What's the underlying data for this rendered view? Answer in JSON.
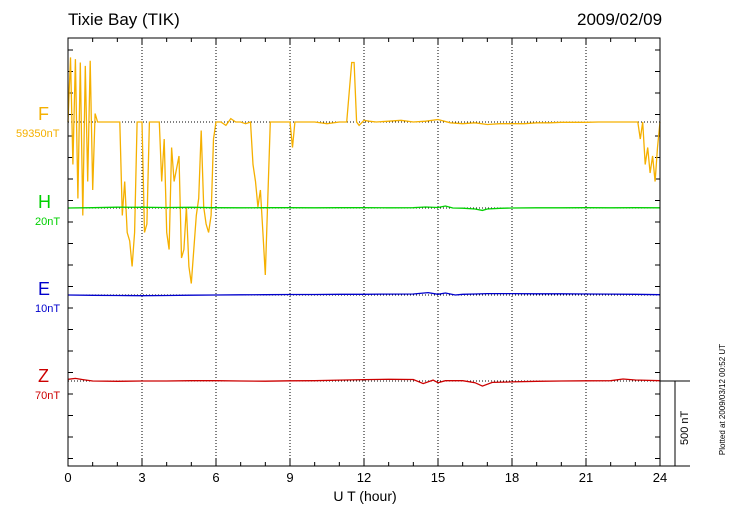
{
  "header": {
    "station": "Tixie Bay (TIK)",
    "date": "2009/02/09"
  },
  "channels": [
    {
      "name": "F",
      "scale": "59350nT",
      "color": "#f5b000"
    },
    {
      "name": "H",
      "scale": "20nT",
      "color": "#00d000"
    },
    {
      "name": "E",
      "scale": "10nT",
      "color": "#0000cc"
    },
    {
      "name": "Z",
      "scale": "70nT",
      "color": "#cc0000"
    }
  ],
  "side": {
    "scale_bar_label": "500 nT",
    "plotted": "Plotted at 2009/03/12 00:52 UT"
  },
  "chart_data": {
    "type": "line",
    "xlabel": "U T (hour)",
    "xlim": [
      0,
      24
    ],
    "xticks": [
      0,
      3,
      6,
      9,
      12,
      15,
      18,
      21,
      24
    ],
    "ylabel": "",
    "scale_bar_nT": 500,
    "grid": true,
    "series": [
      {
        "name": "F",
        "baseline": 59350,
        "unit": "nT",
        "x": [
          0.0,
          0.1,
          0.2,
          0.3,
          0.4,
          0.5,
          0.6,
          0.7,
          0.8,
          0.9,
          1.0,
          1.1,
          1.2,
          1.7,
          2.1,
          2.2,
          2.3,
          2.4,
          2.5,
          2.6,
          2.7,
          2.8,
          2.9,
          3.0,
          3.1,
          3.2,
          3.3,
          3.5,
          3.7,
          3.8,
          3.9,
          4.0,
          4.1,
          4.2,
          4.3,
          4.5,
          4.6,
          4.7,
          4.8,
          4.9,
          5.0,
          5.1,
          5.2,
          5.3,
          5.4,
          5.5,
          5.6,
          5.7,
          5.8,
          5.9,
          6.0,
          6.2,
          6.4,
          6.6,
          6.8,
          7.0,
          7.2,
          7.4,
          7.5,
          7.6,
          7.7,
          7.8,
          7.9,
          8.0,
          8.1,
          8.2,
          8.4,
          8.6,
          8.8,
          9.0,
          9.1,
          9.2,
          9.5,
          10.0,
          10.5,
          11.0,
          11.3,
          11.5,
          11.6,
          11.7,
          11.8,
          12.0,
          12.2,
          12.5,
          13.0,
          13.5,
          14.0,
          14.5,
          15.0,
          15.5,
          16.0,
          16.5,
          17.0,
          17.5,
          18.0,
          18.5,
          19.0,
          19.5,
          20.0,
          20.5,
          21.0,
          21.5,
          22.0,
          22.5,
          22.8,
          23.0,
          23.1,
          23.2,
          23.3,
          23.4,
          23.5,
          23.6,
          23.7,
          23.8,
          23.9,
          24.0
        ],
        "y": [
          59350,
          59730,
          59100,
          59720,
          58900,
          59700,
          58800,
          59680,
          59000,
          59710,
          58950,
          59400,
          59350,
          59350,
          59350,
          58800,
          59000,
          58700,
          58650,
          58500,
          58700,
          59350,
          59350,
          59350,
          58700,
          58750,
          59350,
          59350,
          59350,
          59000,
          59250,
          58700,
          58600,
          59200,
          59000,
          59150,
          58550,
          58600,
          58850,
          58500,
          58400,
          58600,
          58800,
          58900,
          59300,
          58850,
          58750,
          58700,
          58800,
          59250,
          59350,
          59350,
          59330,
          59370,
          59350,
          59350,
          59340,
          59350,
          59100,
          59000,
          58850,
          58950,
          58700,
          58450,
          58900,
          59350,
          59350,
          59350,
          59350,
          59350,
          59200,
          59350,
          59350,
          59350,
          59340,
          59350,
          59350,
          59700,
          59700,
          59350,
          59330,
          59360,
          59355,
          59350,
          59355,
          59360,
          59350,
          59355,
          59365,
          59345,
          59340,
          59345,
          59335,
          59340,
          59340,
          59340,
          59345,
          59345,
          59348,
          59348,
          59348,
          59350,
          59350,
          59350,
          59350,
          59350,
          59350,
          59250,
          59350,
          59100,
          59200,
          59050,
          59150,
          59000,
          59200,
          59350
        ]
      },
      {
        "name": "H",
        "baseline": 20,
        "unit": "nT",
        "x": [
          0.0,
          1.0,
          2.0,
          3.0,
          4.0,
          5.0,
          6.0,
          7.0,
          8.0,
          9.0,
          10.0,
          11.0,
          12.0,
          13.0,
          14.0,
          14.5,
          15.0,
          15.3,
          15.6,
          16.0,
          16.5,
          16.8,
          17.0,
          17.5,
          18.0,
          19.0,
          20.0,
          21.0,
          22.0,
          23.0,
          24.0
        ],
        "y": [
          20,
          22,
          25,
          24,
          23,
          24,
          22,
          21,
          22,
          22,
          21,
          22,
          22,
          21,
          22,
          26,
          23,
          32,
          20,
          19,
          14,
          6,
          14,
          18,
          20,
          21,
          21,
          22,
          21,
          22,
          21
        ]
      },
      {
        "name": "E",
        "baseline": 10,
        "unit": "nT",
        "x": [
          0.0,
          1.0,
          2.0,
          3.0,
          4.0,
          5.0,
          6.0,
          7.0,
          8.0,
          9.0,
          10.0,
          11.0,
          12.0,
          13.0,
          14.0,
          14.6,
          15.0,
          15.3,
          15.7,
          16.0,
          16.5,
          17.0,
          18.0,
          19.0,
          20.0,
          21.0,
          22.0,
          23.0,
          24.0
        ],
        "y": [
          10,
          8,
          7,
          6,
          7,
          9,
          10,
          11,
          12,
          13,
          13,
          14,
          14,
          15,
          16,
          24,
          14,
          22,
          10,
          14,
          16,
          18,
          18,
          17,
          17,
          16,
          15,
          14,
          12
        ]
      },
      {
        "name": "Z",
        "baseline": 70,
        "unit": "nT",
        "x": [
          0.0,
          0.3,
          0.6,
          1.0,
          2.0,
          3.0,
          4.0,
          5.0,
          6.0,
          7.0,
          8.0,
          9.0,
          10.0,
          11.0,
          12.0,
          13.0,
          14.0,
          14.4,
          14.8,
          15.0,
          15.3,
          16.0,
          16.5,
          16.8,
          17.2,
          18.0,
          19.0,
          20.0,
          21.0,
          22.0,
          22.5,
          23.0,
          24.0
        ],
        "y": [
          80,
          85,
          78,
          70,
          68,
          70,
          70,
          72,
          72,
          70,
          69,
          71,
          72,
          75,
          78,
          80,
          79,
          55,
          75,
          60,
          72,
          72,
          60,
          40,
          62,
          65,
          68,
          70,
          71,
          72,
          82,
          76,
          72
        ]
      }
    ]
  }
}
